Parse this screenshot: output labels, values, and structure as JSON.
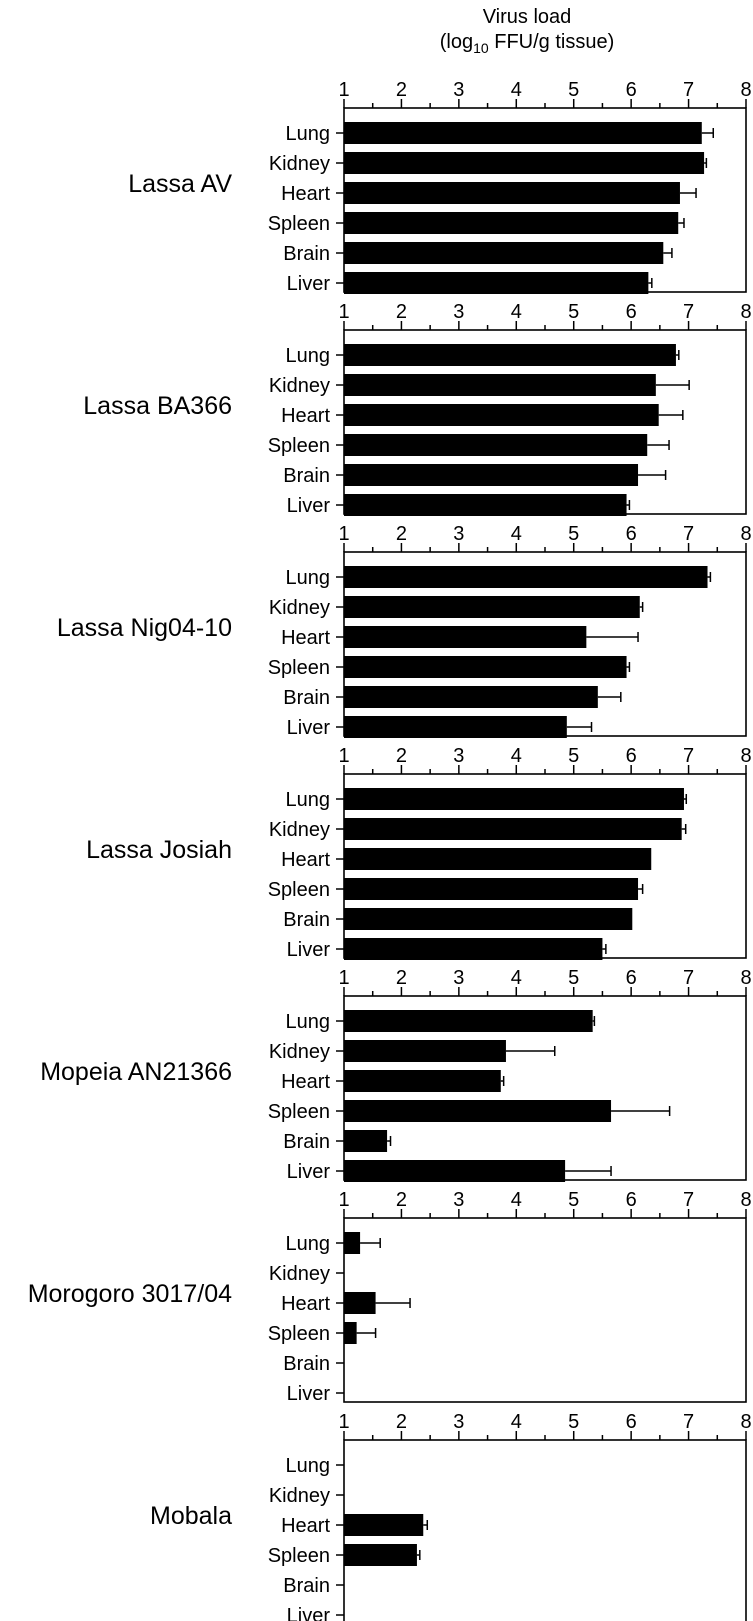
{
  "chart_data": {
    "type": "bar",
    "orientation": "horizontal",
    "axis_title_line1": "Virus load",
    "axis_title_line2_prefix": "(log",
    "axis_title_line2_sub": "10",
    "axis_title_line2_suffix": " FFU/g tissue)",
    "xlim": [
      1,
      8
    ],
    "ticks": [
      "1",
      "2",
      "3",
      "4",
      "5",
      "6",
      "7",
      "8"
    ],
    "categories": [
      "Lung",
      "Kidney",
      "Heart",
      "Spleen",
      "Brain",
      "Liver"
    ],
    "bar_color": "#000000",
    "grid": false,
    "panels": [
      {
        "name": "Lassa AV",
        "values": [
          7.23,
          7.27,
          6.85,
          6.82,
          6.56,
          6.3
        ],
        "errors": [
          0.2,
          0.04,
          0.28,
          0.1,
          0.15,
          0.06
        ]
      },
      {
        "name": "Lassa BA366",
        "values": [
          6.78,
          6.43,
          6.48,
          6.28,
          6.12,
          5.92
        ],
        "errors": [
          0.05,
          0.58,
          0.42,
          0.38,
          0.48,
          0.05
        ]
      },
      {
        "name": "Lassa Nig04-10",
        "values": [
          7.33,
          6.15,
          5.22,
          5.92,
          5.42,
          4.88
        ],
        "errors": [
          0.05,
          0.05,
          0.9,
          0.05,
          0.4,
          0.43
        ]
      },
      {
        "name": "Lassa Josiah",
        "values": [
          6.92,
          6.88,
          6.35,
          6.12,
          6.02,
          5.5
        ],
        "errors": [
          0.04,
          0.07,
          0.0,
          0.08,
          0.0,
          0.06
        ]
      },
      {
        "name": "Mopeia AN21366",
        "values": [
          5.33,
          3.82,
          3.73,
          5.65,
          1.75,
          4.85
        ],
        "errors": [
          0.03,
          0.85,
          0.05,
          1.02,
          0.06,
          0.8
        ]
      },
      {
        "name": "Morogoro 3017/04",
        "values": [
          1.28,
          null,
          1.55,
          1.22,
          null,
          null
        ],
        "errors": [
          0.35,
          null,
          0.6,
          0.33,
          null,
          null
        ]
      },
      {
        "name": "Mobala",
        "values": [
          null,
          null,
          2.38,
          2.27,
          null,
          null
        ],
        "errors": [
          null,
          null,
          0.07,
          0.05,
          null,
          null
        ]
      }
    ]
  }
}
